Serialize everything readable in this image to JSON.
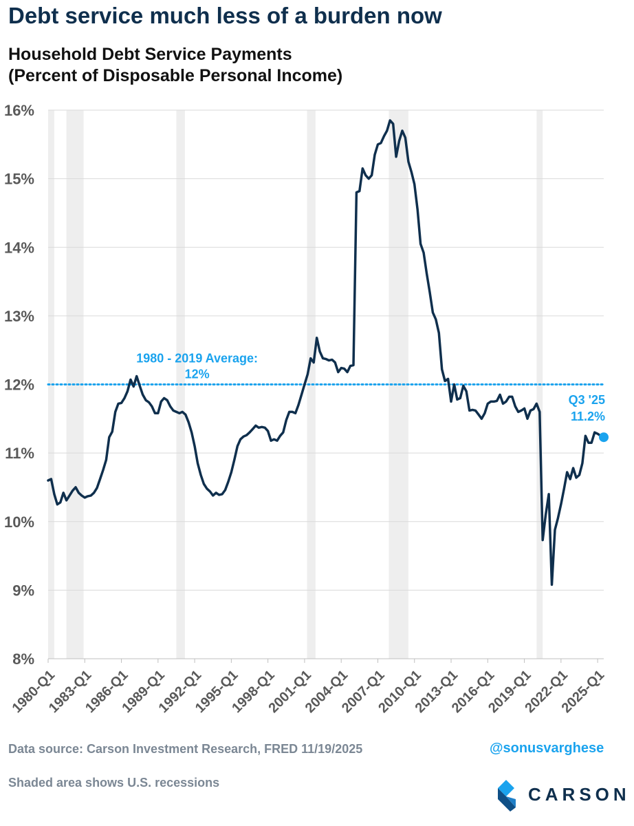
{
  "headline": "Debt service much less of a burden now",
  "subtitle_line1": "Household Debt Service Payments",
  "subtitle_line2": "(Percent of Disposable Personal Income)",
  "footer": {
    "source": "Data source: Carson Investment Research, FRED   11/19/2025",
    "handle": "@sonusvarghese",
    "note": "Shaded area shows U.S. recessions",
    "logo_text": "CARSON"
  },
  "colors": {
    "line": "#0f2f4d",
    "accent": "#1aa3ee",
    "recession": "#eeeeee",
    "grid": "#d9d9d9",
    "axis_text": "#595959"
  },
  "chart_data": {
    "type": "line",
    "title": "Household Debt Service Payments (Percent of Disposable Personal Income)",
    "xlabel": "",
    "ylabel": "",
    "ylim": [
      8,
      16
    ],
    "xlim": [
      1980.0,
      2025.5
    ],
    "y_ticks": [
      8,
      9,
      10,
      11,
      12,
      13,
      14,
      15,
      16
    ],
    "y_tick_labels": [
      "8%",
      "9%",
      "10%",
      "11%",
      "12%",
      "13%",
      "14%",
      "15%",
      "16%"
    ],
    "x_ticks": [
      1980,
      1983,
      1986,
      1989,
      1992,
      1995,
      1998,
      2001,
      2004,
      2007,
      2010,
      2013,
      2016,
      2019,
      2022,
      2025
    ],
    "x_tick_labels": [
      "1980-Q1",
      "1983-Q1",
      "1986-Q1",
      "1989-Q1",
      "1992-Q1",
      "1995-Q1",
      "1998-Q1",
      "2001-Q1",
      "2004-Q1",
      "2007-Q1",
      "2010-Q1",
      "2013-Q1",
      "2016-Q1",
      "2019-Q1",
      "2022-Q1",
      "2025-Q1"
    ],
    "recessions": [
      [
        1980.0,
        1980.5
      ],
      [
        1981.5,
        1982.9
      ],
      [
        1990.5,
        1991.2
      ],
      [
        2001.2,
        2001.9
      ],
      [
        2007.9,
        2009.5
      ],
      [
        2020.0,
        2020.5
      ]
    ],
    "average": {
      "value": 12,
      "label_line1": "1980 - 2019 Average:",
      "label_line2": "12%"
    },
    "last_point": {
      "x": 2025.5,
      "y": 11.23,
      "label_line1": "Q3 '25",
      "label_line2": "11.2%"
    },
    "series": [
      {
        "name": "Household Debt Service Payments (% of Disposable Personal Income)",
        "x": [
          1980.0,
          1980.25,
          1980.5,
          1980.75,
          1981.0,
          1981.25,
          1981.5,
          1981.75,
          1982.0,
          1982.25,
          1982.5,
          1982.75,
          1983.0,
          1983.25,
          1983.5,
          1983.75,
          1984.0,
          1984.25,
          1984.5,
          1984.75,
          1985.0,
          1985.25,
          1985.5,
          1985.75,
          1986.0,
          1986.25,
          1986.5,
          1986.75,
          1987.0,
          1987.25,
          1987.5,
          1987.75,
          1988.0,
          1988.25,
          1988.5,
          1988.75,
          1989.0,
          1989.25,
          1989.5,
          1989.75,
          1990.0,
          1990.25,
          1990.5,
          1990.75,
          1991.0,
          1991.25,
          1991.5,
          1991.75,
          1992.0,
          1992.25,
          1992.5,
          1992.75,
          1993.0,
          1993.25,
          1993.5,
          1993.75,
          1994.0,
          1994.25,
          1994.5,
          1994.75,
          1995.0,
          1995.25,
          1995.5,
          1995.75,
          1996.0,
          1996.25,
          1996.5,
          1996.75,
          1997.0,
          1997.25,
          1997.5,
          1997.75,
          1998.0,
          1998.25,
          1998.5,
          1998.75,
          1999.0,
          1999.25,
          1999.5,
          1999.75,
          2000.0,
          2000.25,
          2000.5,
          2000.75,
          2001.0,
          2001.25,
          2001.5,
          2001.75,
          2002.0,
          2002.25,
          2002.5,
          2002.75,
          2003.0,
          2003.25,
          2003.5,
          2003.75,
          2004.0,
          2004.25,
          2004.5,
          2004.75,
          2005.0,
          2005.25,
          2005.5,
          2005.75,
          2006.0,
          2006.25,
          2006.5,
          2006.75,
          2007.0,
          2007.25,
          2007.5,
          2007.75,
          2008.0,
          2008.25,
          2008.5,
          2008.75,
          2009.0,
          2009.25,
          2009.5,
          2009.75,
          2010.0,
          2010.25,
          2010.5,
          2010.75,
          2011.0,
          2011.25,
          2011.5,
          2011.75,
          2012.0,
          2012.25,
          2012.5,
          2012.75,
          2013.0,
          2013.25,
          2013.5,
          2013.75,
          2014.0,
          2014.25,
          2014.5,
          2014.75,
          2015.0,
          2015.25,
          2015.5,
          2015.75,
          2016.0,
          2016.25,
          2016.5,
          2016.75,
          2017.0,
          2017.25,
          2017.5,
          2017.75,
          2018.0,
          2018.25,
          2018.5,
          2018.75,
          2019.0,
          2019.25,
          2019.5,
          2019.75,
          2020.0,
          2020.25,
          2020.5,
          2020.75,
          2021.0,
          2021.25,
          2021.5,
          2021.75,
          2022.0,
          2022.25,
          2022.5,
          2022.75,
          2023.0,
          2023.25,
          2023.5,
          2023.75,
          2024.0,
          2024.25,
          2024.5,
          2024.75,
          2025.0,
          2025.25,
          2025.5
        ],
        "values": [
          10.6,
          10.62,
          10.4,
          10.25,
          10.28,
          10.42,
          10.31,
          10.38,
          10.45,
          10.5,
          10.42,
          10.38,
          10.35,
          10.37,
          10.38,
          10.42,
          10.49,
          10.62,
          10.75,
          10.9,
          11.23,
          11.31,
          11.6,
          11.72,
          11.73,
          11.8,
          11.9,
          12.07,
          11.97,
          12.12,
          11.98,
          11.85,
          11.77,
          11.74,
          11.68,
          11.58,
          11.58,
          11.75,
          11.8,
          11.77,
          11.68,
          11.62,
          11.6,
          11.58,
          11.6,
          11.56,
          11.45,
          11.3,
          11.1,
          10.85,
          10.68,
          10.55,
          10.48,
          10.44,
          10.38,
          10.42,
          10.39,
          10.4,
          10.46,
          10.58,
          10.72,
          10.9,
          11.1,
          11.2,
          11.24,
          11.26,
          11.3,
          11.35,
          11.4,
          11.37,
          11.38,
          11.37,
          11.32,
          11.18,
          11.2,
          11.18,
          11.25,
          11.3,
          11.48,
          11.6,
          11.6,
          11.58,
          11.7,
          11.85,
          12.0,
          12.15,
          12.38,
          12.32,
          12.68,
          12.48,
          12.38,
          12.37,
          12.35,
          12.36,
          12.32,
          12.18,
          12.24,
          12.23,
          12.18,
          12.27,
          12.28,
          14.8,
          14.82,
          15.15,
          15.05,
          15.0,
          15.05,
          15.35,
          15.5,
          15.52,
          15.62,
          15.7,
          15.85,
          15.8,
          15.32,
          15.55,
          15.7,
          15.6,
          15.25,
          15.1,
          14.92,
          14.55,
          14.05,
          13.92,
          13.62,
          13.35,
          13.05,
          12.95,
          12.75,
          12.22,
          12.05,
          12.08,
          11.75,
          12.0,
          11.78,
          11.8,
          11.98,
          11.9,
          11.62,
          11.63,
          11.62,
          11.56,
          11.5,
          11.58,
          11.72,
          11.75,
          11.75,
          11.76,
          11.85,
          11.72,
          11.75,
          11.82,
          11.82,
          11.68,
          11.6,
          11.62,
          11.65,
          11.5,
          11.62,
          11.64,
          11.72,
          11.6,
          9.73,
          10.1,
          10.4,
          9.08,
          9.88,
          10.05,
          10.25,
          10.48,
          10.72,
          10.62,
          10.78,
          10.64,
          10.68,
          10.85,
          11.25,
          11.15,
          11.15,
          11.3,
          11.28,
          11.25,
          11.23
        ]
      }
    ]
  }
}
